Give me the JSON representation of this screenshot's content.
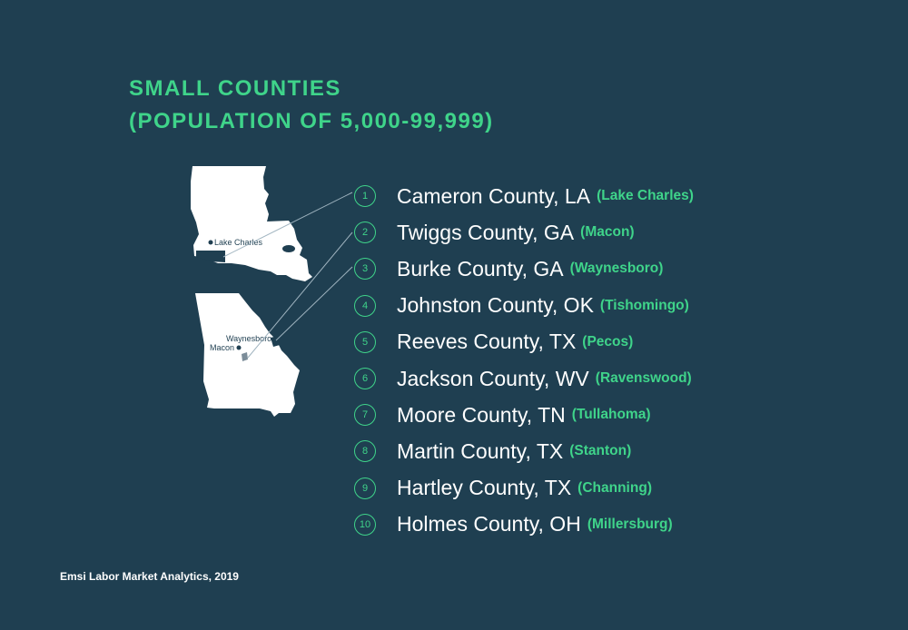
{
  "title": {
    "line1": "SMALL COUNTIES",
    "line2": "(POPULATION OF 5,000-99,999)"
  },
  "map_labels": {
    "lake_charles": "Lake Charles",
    "waynesboro": "Waynesboro",
    "macon": "Macon"
  },
  "rankings": [
    {
      "num": "1",
      "county": "Cameron County, LA",
      "city": "Lake Charles"
    },
    {
      "num": "2",
      "county": "Twiggs County, GA",
      "city": "Macon"
    },
    {
      "num": "3",
      "county": "Burke County, GA",
      "city": "Waynesboro"
    },
    {
      "num": "4",
      "county": "Johnston County, OK",
      "city": "Tishomingo"
    },
    {
      "num": "5",
      "county": "Reeves County, TX",
      "city": "Pecos"
    },
    {
      "num": "6",
      "county": "Jackson County, WV",
      "city": "Ravenswood"
    },
    {
      "num": "7",
      "county": "Moore County, TN",
      "city": "Tullahoma"
    },
    {
      "num": "8",
      "county": "Martin County, TX",
      "city": "Stanton"
    },
    {
      "num": "9",
      "county": "Hartley County, TX",
      "city": "Channing"
    },
    {
      "num": "10",
      "county": "Holmes County, OH",
      "city": "Millersburg"
    }
  ],
  "source": "Emsi Labor Market Analytics, 2019",
  "colors": {
    "background": "#1f3f51",
    "accent": "#3fd48a",
    "text": "#ffffff"
  }
}
